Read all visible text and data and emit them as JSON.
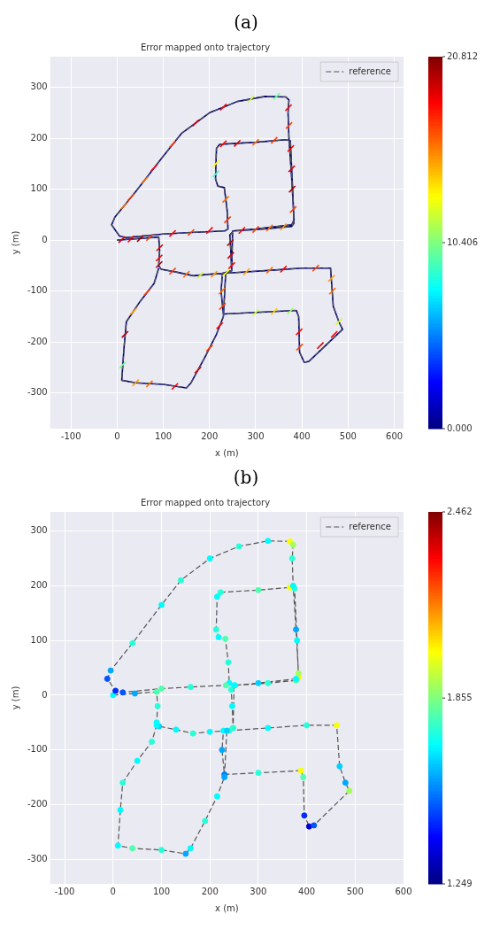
{
  "chart_data": [
    {
      "type": "line",
      "title": "Error mapped onto trajectory",
      "annotations": [
        "(a)"
      ],
      "xlabel": "x (m)",
      "ylabel": "y (m)",
      "xlim": [
        -145,
        620
      ],
      "ylim": [
        -370,
        360
      ],
      "xticks": [
        -100,
        0,
        100,
        200,
        300,
        400,
        500,
        600
      ],
      "yticks": [
        -300,
        -200,
        -100,
        0,
        100,
        200,
        300
      ],
      "grid": true,
      "legend": "top right",
      "clim": [
        0,
        20.812
      ],
      "cticks": [
        {
          "value": 0,
          "label": "0.000"
        },
        {
          "value": 10.406,
          "label": "10.406"
        },
        {
          "value": 20.812,
          "label": "20.812"
        }
      ],
      "x": [
        0,
        45,
        90,
        92,
        90,
        95,
        130,
        165,
        200,
        240,
        248,
        246,
        244,
        252,
        320,
        378,
        383,
        380,
        375,
        365,
        300,
        222,
        215,
        213,
        218,
        232,
        238,
        240,
        233,
        160,
        100,
        20,
        5,
        -12,
        -5,
        40,
        100,
        140,
        200,
        260,
        320,
        365,
        372,
        370,
        372,
        378,
        383,
        378,
        300,
        250,
        248,
        228,
        225,
        230,
        300,
        388,
        393,
        395,
        405,
        415,
        488,
        480,
        468,
        462,
        400,
        320,
        235,
        230,
        215,
        190,
        160,
        150,
        100,
        40,
        10,
        15,
        20,
        50,
        80,
        90
      ],
      "series": [
        {
          "name": "reference",
          "type": "line",
          "color": "#555555",
          "line_style": "dashed",
          "values": [
            0,
            3,
            6,
            -20,
            -50,
            -57,
            -63,
            -70,
            -67,
            -65,
            -60,
            -20,
            10,
            18,
            22,
            27,
            33,
            100,
            195,
            197,
            192,
            188,
            180,
            120,
            106,
            103,
            60,
            22,
            18,
            15,
            12,
            5,
            8,
            30,
            45,
            95,
            165,
            210,
            250,
            272,
            282,
            281,
            275,
            250,
            200,
            120,
            40,
            30,
            22,
            18,
            -60,
            -65,
            -100,
            -145,
            -142,
            -138,
            -150,
            -220,
            -240,
            -238,
            -175,
            -160,
            -130,
            -55,
            -55,
            -60,
            -65,
            -150,
            -185,
            -230,
            -280,
            -290,
            -283,
            -280,
            -275,
            -210,
            -160,
            -120,
            -85,
            -55
          ]
        },
        {
          "type": "line",
          "color": "#00007f",
          "line_style": "solid",
          "values": [
            0,
            3,
            6,
            -20,
            -50,
            -57,
            -63,
            -70,
            -67,
            -65,
            -60,
            -20,
            10,
            18,
            22,
            27,
            33,
            100,
            195,
            197,
            192,
            188,
            180,
            120,
            106,
            103,
            60,
            22,
            18,
            15,
            12,
            5,
            8,
            30,
            45,
            95,
            165,
            210,
            250,
            272,
            282,
            281,
            275,
            250,
            200,
            120,
            40,
            30,
            22,
            18,
            -60,
            -65,
            -100,
            -145,
            -142,
            -138,
            -150,
            -220,
            -240,
            -238,
            -175,
            -160,
            -130,
            -55,
            -55,
            -60,
            -65,
            -150,
            -185,
            -230,
            -280,
            -290,
            -283,
            -280,
            -275,
            -210,
            -160,
            -120,
            -85,
            -55
          ]
        },
        {
          "type": "scatter",
          "x": [
            10,
            30,
            50,
            70,
            92,
            91,
            91,
            120,
            150,
            180,
            210,
            235,
            248,
            246,
            245,
            270,
            300,
            330,
            360,
            381,
            379,
            378,
            376,
            340,
            300,
            260,
            230,
            214,
            214,
            235,
            239,
            200,
            160,
            120,
            15,
            30,
            60,
            80,
            120,
            170,
            230,
            290,
            345,
            371,
            372,
            227,
            228,
            300,
            340,
            375,
            394,
            395,
            440,
            470,
            466,
            464,
            480,
            430,
            360,
            330,
            280,
            222,
            200,
            175,
            125,
            70,
            40,
            12,
            17,
            35,
            65
          ],
          "values": [
            1,
            2,
            3,
            5,
            -15,
            -35,
            -48,
            -61,
            -67,
            -69,
            -67,
            -65,
            -50,
            -30,
            -5,
            19,
            21,
            24,
            26,
            60,
            100,
            140,
            180,
            196,
            192,
            190,
            189,
            150,
            130,
            80,
            40,
            19,
            15,
            13,
            67,
            84,
            118,
            142,
            188,
            230,
            261,
            277,
            282,
            260,
            225,
            -100,
            -130,
            -142,
            -140,
            -139,
            -180,
            -210,
            -207,
            -185,
            -100,
            -75,
            -160,
            -55,
            -57,
            -59,
            -62,
            -168,
            -212,
            -255,
            -287,
            -282,
            -280,
            -245,
            -185,
            -140,
            -102
          ],
          "colors": [
            "#d80000",
            "#ff0000",
            "#a70000",
            "#ff3b00",
            "#d80000",
            "#ff0000",
            "#a70000",
            "#ff3b00",
            "#ff6c00",
            "#ceff31",
            "#ff9d00",
            "#feff01",
            "#ff0000",
            "#d80000",
            "#a70000",
            "#ff0000",
            "#ff3b00",
            "#ff6c00",
            "#ff9d00",
            "#ff3b00",
            "#a70000",
            "#d80000",
            "#ff0000",
            "#ff3b00",
            "#ff6c00",
            "#d80000",
            "#ff0000",
            "#feff01",
            "#3bffc4",
            "#ff6c00",
            "#ff3b00",
            "#ff0000",
            "#ff3b00",
            "#ff0000",
            "#ff6c00",
            "#ff3b00",
            "#ff6c00",
            "#ff0000",
            "#ff3b00",
            "#d80000",
            "#ff0000",
            "#ceff31",
            "#6cff93",
            "#ff0000",
            "#ff3b00",
            "#ff6c00",
            "#ff3b00",
            "#ceff31",
            "#ffce00",
            "#9dff62",
            "#ff0000",
            "#ff3b00",
            "#d80000",
            "#ff0000",
            "#ff6c00",
            "#ff9d00",
            "#ceff31",
            "#ff3b00",
            "#ff0000",
            "#ff6c00",
            "#ff9d00",
            "#ff0000",
            "#ff3b00",
            "#d80000",
            "#ff0000",
            "#ff6c00",
            "#ff9d00",
            "#6cff93",
            "#a70000",
            "#ff9d00",
            "#ff3b00"
          ],
          "cvalues": [
            19,
            18,
            20,
            17,
            19,
            18,
            20,
            17,
            16,
            12,
            15,
            13,
            18,
            19,
            20,
            18,
            17,
            16,
            15,
            17,
            20,
            19,
            18,
            17,
            16,
            19,
            18,
            13,
            9,
            16,
            17,
            18,
            17,
            18,
            16,
            17,
            16,
            18,
            17,
            19,
            18,
            12,
            10,
            18,
            17,
            16,
            17,
            12,
            14,
            11,
            18,
            17,
            19,
            18,
            16,
            15,
            12,
            17,
            18,
            16,
            15,
            18,
            17,
            19,
            18,
            16,
            15,
            10,
            20,
            15,
            17
          ]
        }
      ]
    },
    {
      "type": "line",
      "title": "Error mapped onto trajectory",
      "annotations": [
        "(b)"
      ],
      "xlabel": "x (m)",
      "ylabel": "y (m)",
      "xlim": [
        -130,
        600
      ],
      "ylim": [
        -345,
        335
      ],
      "xticks": [
        -100,
        0,
        100,
        200,
        300,
        400,
        500,
        600
      ],
      "yticks": [
        -300,
        -200,
        -100,
        0,
        100,
        200,
        300
      ],
      "grid": true,
      "legend": "top right",
      "clim": [
        1.249,
        2.462
      ],
      "cticks": [
        {
          "value": 1.249,
          "label": "1.249"
        },
        {
          "value": 1.855,
          "label": "1.855"
        },
        {
          "value": 2.462,
          "label": "2.462"
        }
      ],
      "x": [
        0,
        45,
        90,
        92,
        90,
        95,
        130,
        165,
        200,
        240,
        248,
        246,
        244,
        252,
        320,
        378,
        383,
        380,
        375,
        365,
        300,
        222,
        215,
        213,
        218,
        232,
        238,
        240,
        233,
        160,
        100,
        20,
        5,
        -12,
        -5,
        40,
        100,
        140,
        200,
        260,
        320,
        365,
        372,
        370,
        372,
        378,
        383,
        378,
        300,
        250,
        248,
        228,
        225,
        230,
        300,
        388,
        393,
        395,
        405,
        415,
        488,
        480,
        468,
        462,
        400,
        320,
        235,
        230,
        215,
        190,
        160,
        150,
        100,
        40,
        10,
        15,
        20,
        50,
        80,
        90
      ],
      "series": [
        {
          "type": "scatter",
          "marker": "circle",
          "values": [
            0,
            3,
            6,
            -20,
            -50,
            -57,
            -63,
            -70,
            -67,
            -65,
            -60,
            -20,
            10,
            18,
            22,
            27,
            33,
            100,
            195,
            197,
            192,
            188,
            180,
            120,
            106,
            103,
            60,
            22,
            18,
            15,
            12,
            5,
            8,
            30,
            45,
            95,
            165,
            210,
            250,
            272,
            282,
            281,
            275,
            250,
            200,
            120,
            40,
            30,
            22,
            18,
            -60,
            -65,
            -100,
            -145,
            -142,
            -138,
            -150,
            -220,
            -240,
            -238,
            -175,
            -160,
            -130,
            -55,
            -55,
            -60,
            -65,
            -150,
            -185,
            -230,
            -280,
            -290,
            -283,
            -280,
            -275,
            -210,
            -160,
            -120,
            -85,
            -55
          ],
          "colors": [
            "#00fcff",
            "#00a8ff",
            "#51ffae",
            "#27ffd8",
            "#00fcff",
            "#00d2ff",
            "#00fcff",
            "#27ffd8",
            "#00fcff",
            "#27ffd8",
            "#51ffae",
            "#00fcff",
            "#27ffd8",
            "#00fcff",
            "#27ffd8",
            "#51ffae",
            "#f9ff06",
            "#00fcff",
            "#27ffd8",
            "#f9ff06",
            "#51ffae",
            "#27ffd8",
            "#00fcff",
            "#27ffd8",
            "#00fcff",
            "#51ffae",
            "#27ffd8",
            "#00fcff",
            "#51ffae",
            "#27ffd8",
            "#51ffae",
            "#0054ff",
            "#002aff",
            "#0054ff",
            "#00a8ff",
            "#27ffd8",
            "#00fcff",
            "#27ffd8",
            "#00fcff",
            "#27ffd8",
            "#00fcff",
            "#f9ff06",
            "#a5ff5a",
            "#27ffd8",
            "#00fcff",
            "#00a8ff",
            "#a5ff5a",
            "#00fcff",
            "#00d2ff",
            "#00fcff",
            "#27ffd8",
            "#00fcff",
            "#00a8ff",
            "#007dff",
            "#27ffd8",
            "#f9ff06",
            "#51ffae",
            "#002aff",
            "#0000d4",
            "#0054ff",
            "#a5ff5a",
            "#00a8ff",
            "#00d2ff",
            "#f9ff06",
            "#27ffd8",
            "#00fcff",
            "#00d2ff",
            "#00a8ff",
            "#00fcff",
            "#27ffd8",
            "#00fcff",
            "#00a8ff",
            "#27ffd8",
            "#51ffae",
            "#00fcff",
            "#00fcff",
            "#27ffd8",
            "#00fcff",
            "#27ffd8",
            "#00fcff"
          ],
          "cvalues": [
            1.7,
            1.6,
            1.8,
            1.75,
            1.7,
            1.65,
            1.7,
            1.75,
            1.7,
            1.75,
            1.8,
            1.7,
            1.75,
            1.7,
            1.75,
            1.8,
            2.0,
            1.7,
            1.75,
            2.0,
            1.8,
            1.75,
            1.7,
            1.75,
            1.7,
            1.8,
            1.75,
            1.7,
            1.8,
            1.75,
            1.8,
            1.5,
            1.45,
            1.5,
            1.6,
            1.75,
            1.7,
            1.75,
            1.7,
            1.75,
            1.7,
            2.0,
            1.9,
            1.75,
            1.7,
            1.6,
            1.9,
            1.7,
            1.65,
            1.7,
            1.75,
            1.7,
            1.6,
            1.55,
            1.75,
            2.0,
            1.8,
            1.45,
            1.35,
            1.5,
            1.9,
            1.6,
            1.65,
            2.0,
            1.75,
            1.7,
            1.65,
            1.6,
            1.7,
            1.75,
            1.7,
            1.6,
            1.75,
            1.8,
            1.7,
            1.7,
            1.75,
            1.7,
            1.75,
            1.7
          ]
        },
        {
          "name": "reference",
          "type": "line",
          "color": "#555555",
          "line_style": "dashed",
          "values": [
            0,
            3,
            6,
            -20,
            -50,
            -57,
            -63,
            -70,
            -67,
            -65,
            -60,
            -20,
            10,
            18,
            22,
            27,
            33,
            100,
            195,
            197,
            192,
            188,
            180,
            120,
            106,
            103,
            60,
            22,
            18,
            15,
            12,
            5,
            8,
            30,
            45,
            95,
            165,
            210,
            250,
            272,
            282,
            281,
            275,
            250,
            200,
            120,
            40,
            30,
            22,
            18,
            -60,
            -65,
            -100,
            -145,
            -142,
            -138,
            -150,
            -220,
            -240,
            -238,
            -175,
            -160,
            -130,
            -55,
            -55,
            -60,
            -65,
            -150,
            -185,
            -230,
            -280,
            -290,
            -283,
            -280,
            -275,
            -210,
            -160,
            -120,
            -85,
            -55
          ]
        }
      ]
    }
  ]
}
